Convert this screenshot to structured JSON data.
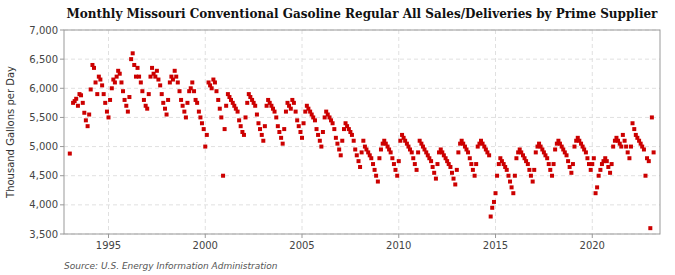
{
  "chart_data": {
    "type": "scatter",
    "title": "Monthly Missouri Conventional Gasoline Regular All Sales/Deliveries by Prime Supplier",
    "ylabel": "Thousand Gallons per Day",
    "source": "Source: U.S. Energy Information Administration",
    "color": "#cc0000",
    "marker": "square",
    "grid": true,
    "xlim": [
      1992.7,
      2023.5
    ],
    "xticks": [
      1995,
      2000,
      2005,
      2010,
      2015,
      2020
    ],
    "ylim": [
      3500,
      7000
    ],
    "yticks": [
      {
        "value": 3500,
        "label": "3,500"
      },
      {
        "value": 4000,
        "label": "4,000"
      },
      {
        "value": 4500,
        "label": "4,500"
      },
      {
        "value": 5000,
        "label": "5,000"
      },
      {
        "value": 5500,
        "label": "5,500"
      },
      {
        "value": 6000,
        "label": "6,000"
      },
      {
        "value": 6500,
        "label": "6,500"
      },
      {
        "value": 7000,
        "label": "7,000"
      }
    ],
    "x": [
      1993.0,
      1993.17,
      1993.25,
      1993.33,
      1993.42,
      1993.5,
      1993.58,
      1993.67,
      1993.75,
      1993.83,
      1993.92,
      1994.0,
      1994.08,
      1994.17,
      1994.25,
      1994.33,
      1994.42,
      1994.5,
      1994.58,
      1994.67,
      1994.75,
      1994.83,
      1994.92,
      1995.0,
      1995.08,
      1995.17,
      1995.25,
      1995.33,
      1995.42,
      1995.5,
      1995.58,
      1995.67,
      1995.75,
      1995.83,
      1995.92,
      1996.0,
      1996.08,
      1996.17,
      1996.25,
      1996.33,
      1996.42,
      1996.5,
      1996.58,
      1996.67,
      1996.75,
      1996.83,
      1996.92,
      1997.0,
      1997.08,
      1997.17,
      1997.25,
      1997.33,
      1997.42,
      1997.5,
      1997.58,
      1997.67,
      1997.75,
      1997.83,
      1997.92,
      1998.0,
      1998.08,
      1998.17,
      1998.25,
      1998.33,
      1998.42,
      1998.5,
      1998.58,
      1998.67,
      1998.75,
      1998.83,
      1998.92,
      1999.0,
      1999.08,
      1999.17,
      1999.25,
      1999.33,
      1999.42,
      1999.5,
      1999.58,
      1999.67,
      1999.75,
      1999.83,
      1999.92,
      2000.0,
      2000.08,
      2000.17,
      2000.25,
      2000.33,
      2000.42,
      2000.5,
      2000.58,
      2000.67,
      2000.75,
      2000.83,
      2000.92,
      2001.0,
      2001.08,
      2001.17,
      2001.25,
      2001.33,
      2001.42,
      2001.5,
      2001.58,
      2001.67,
      2001.75,
      2001.83,
      2001.92,
      2002.0,
      2002.08,
      2002.17,
      2002.25,
      2002.33,
      2002.42,
      2002.5,
      2002.58,
      2002.67,
      2002.75,
      2002.83,
      2002.92,
      2003.0,
      2003.08,
      2003.17,
      2003.25,
      2003.33,
      2003.42,
      2003.5,
      2003.58,
      2003.67,
      2003.75,
      2003.83,
      2003.92,
      2004.0,
      2004.08,
      2004.17,
      2004.25,
      2004.33,
      2004.42,
      2004.5,
      2004.58,
      2004.67,
      2004.75,
      2004.83,
      2004.92,
      2005.0,
      2005.08,
      2005.17,
      2005.25,
      2005.33,
      2005.42,
      2005.5,
      2005.58,
      2005.67,
      2005.75,
      2005.83,
      2005.92,
      2006.0,
      2006.08,
      2006.17,
      2006.25,
      2006.33,
      2006.42,
      2006.5,
      2006.58,
      2006.67,
      2006.75,
      2006.83,
      2006.92,
      2007.0,
      2007.08,
      2007.17,
      2007.25,
      2007.33,
      2007.42,
      2007.5,
      2007.58,
      2007.67,
      2007.75,
      2007.83,
      2007.92,
      2008.0,
      2008.08,
      2008.17,
      2008.25,
      2008.33,
      2008.42,
      2008.5,
      2008.58,
      2008.67,
      2008.75,
      2008.83,
      2008.92,
      2009.0,
      2009.08,
      2009.17,
      2009.25,
      2009.33,
      2009.42,
      2009.5,
      2009.58,
      2009.67,
      2009.75,
      2009.83,
      2009.92,
      2010.0,
      2010.08,
      2010.17,
      2010.25,
      2010.33,
      2010.42,
      2010.5,
      2010.58,
      2010.67,
      2010.75,
      2010.83,
      2010.92,
      2011.0,
      2011.08,
      2011.17,
      2011.25,
      2011.33,
      2011.42,
      2011.5,
      2011.58,
      2011.67,
      2011.75,
      2011.83,
      2011.92,
      2012.0,
      2012.08,
      2012.17,
      2012.25,
      2012.33,
      2012.42,
      2012.5,
      2012.58,
      2012.67,
      2012.75,
      2012.83,
      2012.92,
      2013.0,
      2013.08,
      2013.17,
      2013.25,
      2013.33,
      2013.42,
      2013.5,
      2013.58,
      2013.67,
      2013.75,
      2013.83,
      2013.92,
      2014.0,
      2014.08,
      2014.17,
      2014.25,
      2014.33,
      2014.42,
      2014.5,
      2014.58,
      2014.67,
      2014.75,
      2014.83,
      2014.92,
      2015.0,
      2015.08,
      2015.17,
      2015.25,
      2015.33,
      2015.42,
      2015.5,
      2015.58,
      2015.67,
      2015.75,
      2015.83,
      2015.92,
      2016.0,
      2016.08,
      2016.17,
      2016.25,
      2016.33,
      2016.42,
      2016.5,
      2016.58,
      2016.67,
      2016.75,
      2016.83,
      2016.92,
      2017.0,
      2017.08,
      2017.17,
      2017.25,
      2017.33,
      2017.42,
      2017.5,
      2017.58,
      2017.67,
      2017.75,
      2017.83,
      2017.92,
      2018.0,
      2018.08,
      2018.17,
      2018.25,
      2018.33,
      2018.42,
      2018.5,
      2018.58,
      2018.67,
      2018.75,
      2018.83,
      2018.92,
      2019.0,
      2019.08,
      2019.17,
      2019.25,
      2019.33,
      2019.42,
      2019.5,
      2019.58,
      2019.67,
      2019.75,
      2019.83,
      2019.92,
      2020.0,
      2020.08,
      2020.17,
      2020.25,
      2020.33,
      2020.42,
      2020.5,
      2020.58,
      2020.67,
      2020.75,
      2020.83,
      2020.92,
      2021.0,
      2021.08,
      2021.17,
      2021.25,
      2021.33,
      2021.42,
      2021.5,
      2021.58,
      2021.67,
      2021.75,
      2021.83,
      2021.92,
      2022.0,
      2022.08,
      2022.17,
      2022.25,
      2022.33,
      2022.42,
      2022.5,
      2022.58,
      2022.67,
      2022.75,
      2022.83,
      2022.92,
      2023.0,
      2023.08,
      2023.17
    ],
    "values": [
      4880,
      5750,
      5780,
      5820,
      5700,
      5900,
      5880,
      5750,
      5580,
      5450,
      5350,
      5550,
      5980,
      6400,
      6350,
      6100,
      5900,
      6200,
      6150,
      6050,
      5900,
      5750,
      5600,
      5500,
      5800,
      6000,
      6150,
      6100,
      6200,
      6300,
      6250,
      6100,
      5950,
      5800,
      5700,
      5600,
      5850,
      6500,
      6600,
      6400,
      6200,
      6350,
      6200,
      6100,
      5950,
      5800,
      5700,
      5650,
      5900,
      6200,
      6350,
      6250,
      6200,
      6300,
      6150,
      6050,
      5900,
      5750,
      5650,
      5550,
      5800,
      6100,
      6200,
      6150,
      6300,
      6200,
      6100,
      5950,
      5800,
      5700,
      5600,
      5500,
      5750,
      5950,
      6000,
      6100,
      5950,
      5800,
      5750,
      5600,
      5500,
      5400,
      5300,
      5000,
      5200,
      6100,
      6050,
      6000,
      6150,
      6100,
      5950,
      5800,
      5650,
      5500,
      4500,
      5300,
      5700,
      5900,
      5850,
      5800,
      5750,
      5700,
      5650,
      5600,
      5450,
      5350,
      5250,
      5200,
      5500,
      5750,
      5900,
      5850,
      5800,
      5750,
      5700,
      5550,
      5400,
      5300,
      5200,
      5100,
      5350,
      5700,
      5800,
      5750,
      5700,
      5650,
      5600,
      5500,
      5350,
      5250,
      5150,
      5050,
      5300,
      5600,
      5750,
      5700,
      5650,
      5800,
      5750,
      5600,
      5450,
      5350,
      5250,
      5150,
      5400,
      5600,
      5700,
      5650,
      5600,
      5550,
      5500,
      5450,
      5300,
      5200,
      5100,
      5000,
      5250,
      5500,
      5600,
      5550,
      5500,
      5450,
      5400,
      5300,
      5150,
      5050,
      4950,
      4850,
      5100,
      5300,
      5400,
      5350,
      5300,
      5250,
      5200,
      5100,
      4950,
      4850,
      4750,
      4650,
      4900,
      5100,
      5000,
      4950,
      4900,
      4850,
      4800,
      4700,
      4600,
      4500,
      4400,
      4800,
      4950,
      5050,
      5100,
      5050,
      5000,
      4950,
      4900,
      4800,
      4700,
      4600,
      4500,
      4750,
      5100,
      5200,
      5150,
      5100,
      5050,
      5000,
      4950,
      4900,
      4800,
      4700,
      4600,
      4900,
      5100,
      5050,
      5000,
      4950,
      4900,
      4850,
      4800,
      4750,
      4650,
      4550,
      4450,
      4700,
      4900,
      4950,
      4900,
      4850,
      4800,
      4750,
      4700,
      4650,
      4550,
      4450,
      4350,
      4600,
      4900,
      5050,
      5100,
      5050,
      5000,
      4950,
      4900,
      4800,
      4700,
      4600,
      4500,
      4700,
      5000,
      5050,
      5100,
      5050,
      5000,
      4950,
      4900,
      4850,
      3800,
      3950,
      4050,
      4200,
      4500,
      4700,
      4800,
      4750,
      4700,
      4650,
      4600,
      4500,
      4400,
      4300,
      4200,
      4500,
      4800,
      4900,
      4950,
      4900,
      4850,
      4800,
      4750,
      4700,
      4600,
      4500,
      4400,
      4600,
      4900,
      5000,
      5050,
      5000,
      4950,
      4900,
      4850,
      4800,
      4700,
      4600,
      4500,
      4700,
      4950,
      5050,
      5100,
      5050,
      5000,
      4950,
      4900,
      4850,
      4750,
      4650,
      4550,
      4700,
      5000,
      5100,
      5150,
      5100,
      5050,
      5000,
      4950,
      4900,
      4800,
      4700,
      4600,
      4700,
      4800,
      4200,
      4300,
      4500,
      4600,
      4700,
      4750,
      4800,
      4750,
      4650,
      4550,
      4700,
      5000,
      5100,
      5150,
      5100,
      5050,
      5000,
      5200,
      5100,
      5000,
      4900,
      4800,
      5000,
      5400,
      5300,
      5200,
      5150,
      5100,
      5050,
      5000,
      4950,
      4500,
      4800,
      4750,
      3600,
      5500,
      4900
    ]
  }
}
